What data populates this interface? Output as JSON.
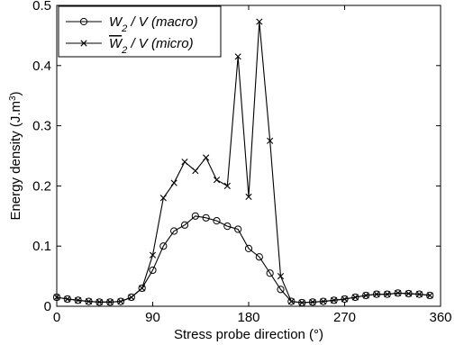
{
  "chart_data": {
    "type": "line",
    "xlabel": "Stress probe direction (°)",
    "ylabel": "Energy density (J.m",
    "ylabel_sup": "3",
    "ylabel_close": ")",
    "xlim": [
      0,
      360
    ],
    "ylim": [
      0,
      0.5
    ],
    "xticks": [
      "0",
      "90",
      "180",
      "270",
      "360"
    ],
    "xtick_values": [
      0,
      90,
      180,
      270,
      360
    ],
    "yticks": [
      "0",
      "0.1",
      "0.2",
      "0.3",
      "0.4",
      "0.5"
    ],
    "ytick_values": [
      0,
      0.1,
      0.2,
      0.3,
      0.4,
      0.5
    ],
    "grid": false,
    "legend_position": "top-left",
    "series": [
      {
        "name": "W2 / V (macro)",
        "legend": {
          "sym": "W",
          "sub": "2",
          "rest": " / V (macro)",
          "overline": false
        },
        "marker": "circle",
        "color": "#000000",
        "x": [
          0,
          10,
          20,
          30,
          40,
          50,
          60,
          70,
          80,
          90,
          100,
          110,
          120,
          130,
          140,
          150,
          160,
          170,
          180,
          190,
          200,
          210,
          220,
          230,
          240,
          250,
          260,
          270,
          280,
          290,
          300,
          310,
          320,
          330,
          340,
          350
        ],
        "y": [
          0.015,
          0.012,
          0.01,
          0.008,
          0.007,
          0.007,
          0.008,
          0.015,
          0.03,
          0.06,
          0.1,
          0.125,
          0.135,
          0.15,
          0.147,
          0.142,
          0.133,
          0.128,
          0.096,
          0.082,
          0.055,
          0.028,
          0.008,
          0.006,
          0.007,
          0.008,
          0.01,
          0.012,
          0.015,
          0.018,
          0.02,
          0.02,
          0.022,
          0.021,
          0.02,
          0.018
        ]
      },
      {
        "name": "W2 / V (micro)",
        "legend": {
          "sym": "W",
          "sub": "2",
          "rest": " / V (micro)",
          "overline": true
        },
        "marker": "x",
        "color": "#000000",
        "x": [
          0,
          10,
          20,
          30,
          40,
          50,
          60,
          70,
          80,
          90,
          100,
          110,
          120,
          130,
          140,
          150,
          160,
          170,
          180,
          190,
          200,
          210,
          220,
          230,
          240,
          250,
          260,
          270,
          280,
          290,
          300,
          310,
          320,
          330,
          340,
          350
        ],
        "y": [
          0.015,
          0.012,
          0.01,
          0.008,
          0.007,
          0.007,
          0.008,
          0.015,
          0.03,
          0.085,
          0.18,
          0.205,
          0.24,
          0.225,
          0.247,
          0.21,
          0.2,
          0.415,
          0.182,
          0.473,
          0.275,
          0.05,
          0.008,
          0.006,
          0.007,
          0.008,
          0.01,
          0.012,
          0.015,
          0.018,
          0.02,
          0.02,
          0.022,
          0.021,
          0.02,
          0.018
        ]
      }
    ]
  }
}
